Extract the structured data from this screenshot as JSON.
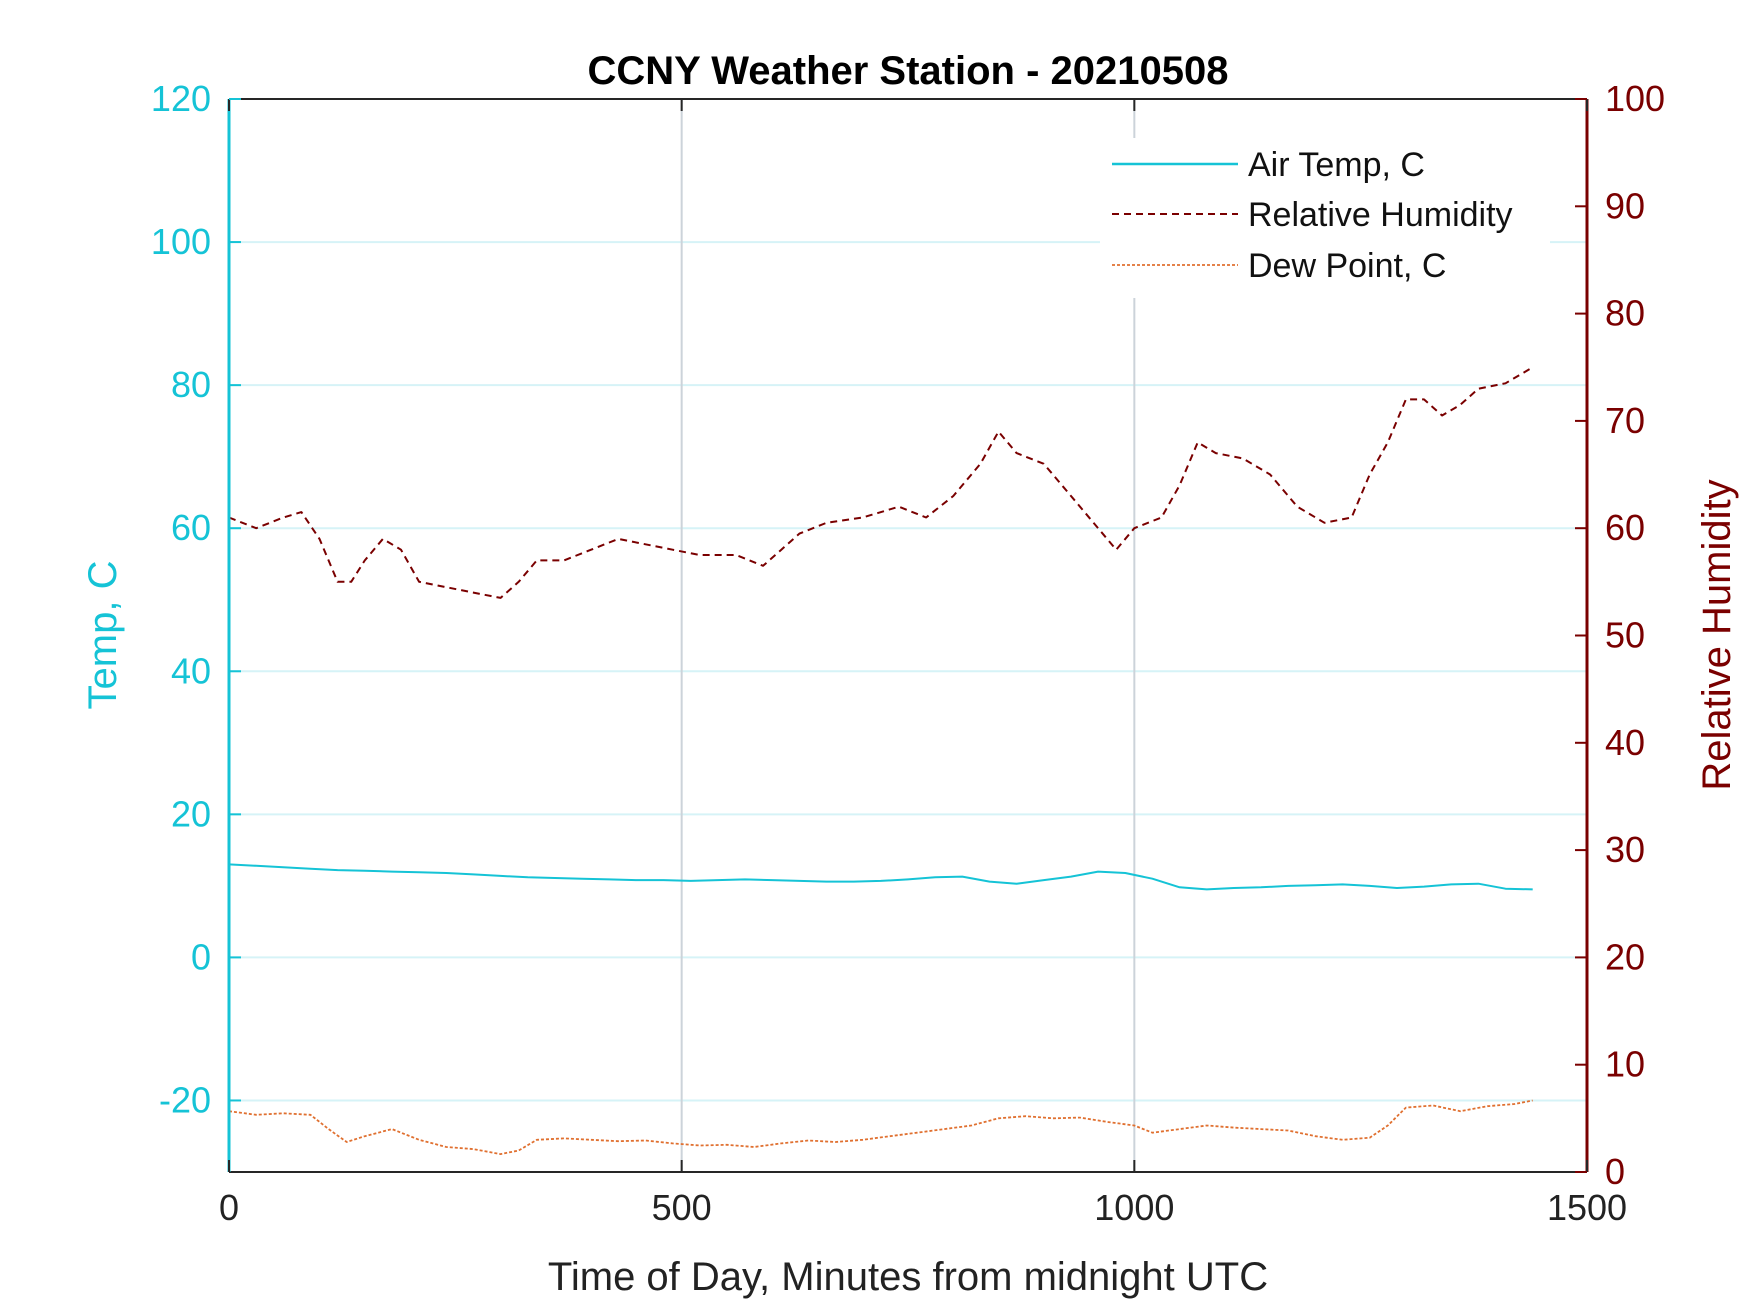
{
  "chart_data": {
    "type": "line",
    "title": "CCNY Weather Station - 20210508",
    "xlabel": "Time of Day, Minutes from midnight UTC",
    "ylabel_left": "Temp, C",
    "ylabel_right": "Relative Humidity",
    "xlim": [
      0,
      1500
    ],
    "ylim_left": [
      -30,
      120
    ],
    "ylim_right": [
      0,
      100
    ],
    "x_ticks": [
      "0",
      "500",
      "1000",
      "1500"
    ],
    "y_ticks_left": [
      "-20",
      "0",
      "20",
      "40",
      "60",
      "80",
      "100",
      "120"
    ],
    "y_ticks_right": [
      "0",
      "10",
      "20",
      "30",
      "40",
      "50",
      "60",
      "70",
      "80",
      "90",
      "100"
    ],
    "grid": true,
    "legend_position": "top-right",
    "colors": {
      "left_axis": "#15c3d6",
      "right_axis": "#7a0000",
      "dew_point": "#e07030",
      "grid_horizontal": "#d6f3f7",
      "grid_vertical": "#ccd3da"
    },
    "series": [
      {
        "name": "Air Temp, C",
        "axis": "left",
        "style": "solid",
        "x": [
          0,
          30,
          60,
          90,
          120,
          150,
          180,
          210,
          240,
          270,
          300,
          330,
          360,
          390,
          420,
          450,
          480,
          510,
          540,
          570,
          600,
          630,
          660,
          690,
          720,
          750,
          780,
          810,
          840,
          870,
          900,
          930,
          960,
          990,
          1020,
          1050,
          1080,
          1110,
          1140,
          1170,
          1200,
          1230,
          1260,
          1290,
          1320,
          1350,
          1380,
          1410,
          1440
        ],
        "y": [
          13,
          12.8,
          12.6,
          12.4,
          12.2,
          12.1,
          12,
          11.9,
          11.8,
          11.6,
          11.4,
          11.2,
          11.1,
          11,
          10.9,
          10.8,
          10.8,
          10.7,
          10.8,
          10.9,
          10.8,
          10.7,
          10.6,
          10.6,
          10.7,
          10.9,
          11.2,
          11.3,
          10.6,
          10.3,
          10.8,
          11.3,
          12,
          11.8,
          11,
          9.8,
          9.5,
          9.7,
          9.8,
          10,
          10.1,
          10.2,
          10,
          9.7,
          9.9,
          10.2,
          10.3,
          9.6,
          9.5
        ]
      },
      {
        "name": "Relative Humidity",
        "axis": "right",
        "style": "dashed",
        "x": [
          0,
          30,
          60,
          80,
          100,
          120,
          135,
          150,
          170,
          190,
          210,
          240,
          270,
          300,
          320,
          340,
          370,
          400,
          430,
          460,
          490,
          520,
          560,
          590,
          610,
          630,
          660,
          700,
          740,
          770,
          800,
          830,
          850,
          870,
          900,
          930,
          960,
          980,
          1000,
          1030,
          1050,
          1070,
          1090,
          1120,
          1150,
          1180,
          1210,
          1240,
          1260,
          1280,
          1300,
          1320,
          1340,
          1360,
          1380,
          1410,
          1440
        ],
        "y": [
          61,
          60,
          61,
          61.5,
          59,
          55,
          55,
          57,
          59,
          58,
          55,
          54.5,
          54,
          53.5,
          55,
          57,
          57,
          58,
          59,
          58.5,
          58,
          57.5,
          57.5,
          56.5,
          58,
          59.5,
          60.5,
          61,
          62,
          61,
          63,
          66,
          69,
          67,
          66,
          63,
          60,
          58,
          60,
          61,
          64,
          68,
          67,
          66.5,
          65,
          62,
          60.5,
          61,
          65,
          68,
          72,
          72,
          70.5,
          71.5,
          73,
          73.5,
          75
        ]
      },
      {
        "name": "Dew Point, C",
        "axis": "left",
        "style": "dotted",
        "x": [
          0,
          30,
          60,
          90,
          110,
          130,
          150,
          180,
          210,
          240,
          270,
          300,
          320,
          340,
          370,
          400,
          430,
          460,
          490,
          520,
          550,
          580,
          610,
          640,
          670,
          700,
          730,
          760,
          790,
          820,
          850,
          880,
          910,
          940,
          970,
          1000,
          1020,
          1050,
          1080,
          1110,
          1140,
          1170,
          1200,
          1230,
          1260,
          1280,
          1300,
          1330,
          1360,
          1390,
          1420,
          1440
        ],
        "y": [
          -21.5,
          -22,
          -21.8,
          -22,
          -24,
          -25.8,
          -25,
          -24,
          -25.5,
          -26.5,
          -26.8,
          -27.5,
          -27,
          -25.5,
          -25.3,
          -25.5,
          -25.7,
          -25.6,
          -26,
          -26.3,
          -26.2,
          -26.5,
          -26,
          -25.6,
          -25.8,
          -25.5,
          -25,
          -24.5,
          -24,
          -23.5,
          -22.5,
          -22.2,
          -22.5,
          -22.4,
          -23,
          -23.5,
          -24.5,
          -24,
          -23.5,
          -23.8,
          -24,
          -24.2,
          -25,
          -25.5,
          -25.2,
          -23.5,
          -21,
          -20.7,
          -21.5,
          -20.8,
          -20.5,
          -20
        ]
      }
    ]
  }
}
